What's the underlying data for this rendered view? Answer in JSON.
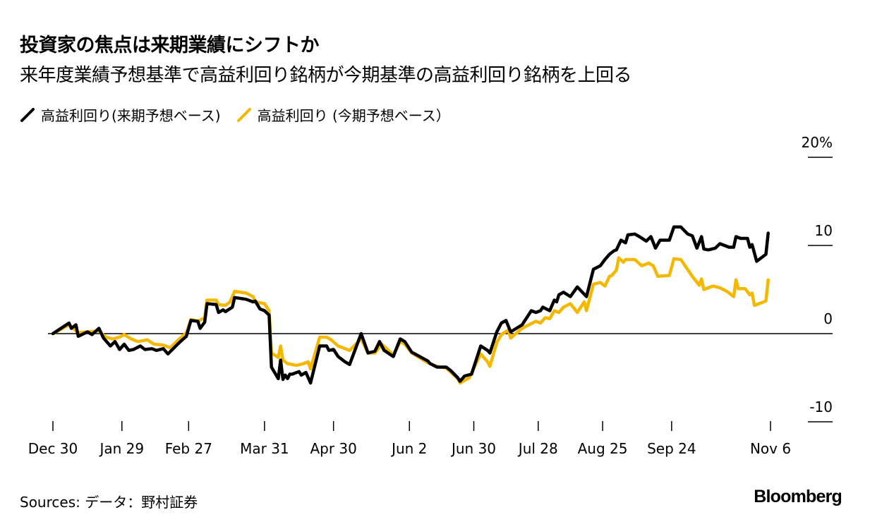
{
  "title": "投資家の焦点は来期業績にシフトか",
  "subtitle": "来年度業績予想基準で高益利回り銘柄が今期基準の高益利回り銘柄を上回る",
  "sources": "Sources: データ：野村証券",
  "logo": "Bloomberg",
  "colors": {
    "black_series": "#000000",
    "yellow_series": "#f5b800",
    "axis": "#000000"
  },
  "chart_data": {
    "type": "line",
    "title": "投資家の焦点は来期業績にシフトか",
    "xlabel": "",
    "ylabel": "",
    "x_unit": "days since Dec 30",
    "xlim": [
      0,
      312
    ],
    "ylim": [
      -10,
      20
    ],
    "y_ticks": [
      {
        "value": 20,
        "label": "20%"
      },
      {
        "value": 10,
        "label": "10"
      },
      {
        "value": 0,
        "label": "0"
      },
      {
        "value": -10,
        "label": "-10"
      }
    ],
    "x_ticks": [
      {
        "value": 0,
        "label": "Dec 30"
      },
      {
        "value": 30,
        "label": "Jan 29"
      },
      {
        "value": 59,
        "label": "Feb 27"
      },
      {
        "value": 92,
        "label": "Mar 31"
      },
      {
        "value": 122,
        "label": "Apr 30"
      },
      {
        "value": 155,
        "label": "Jun 2"
      },
      {
        "value": 183,
        "label": "Jun 30"
      },
      {
        "value": 211,
        "label": "Jul 28"
      },
      {
        "value": 239,
        "label": "Aug 25"
      },
      {
        "value": 269,
        "label": "Sep 24"
      },
      {
        "value": 312,
        "label": "Nov 6"
      }
    ],
    "legend_position": "top-left",
    "series": [
      {
        "name": "高益利回り(来期予想ベース)",
        "color": "#000000",
        "points": [
          [
            0,
            0
          ],
          [
            7,
            1.2
          ],
          [
            8,
            0.6
          ],
          [
            10,
            1.0
          ],
          [
            11,
            -0.3
          ],
          [
            15,
            0.2
          ],
          [
            17,
            -0.1
          ],
          [
            20,
            0.6
          ],
          [
            22,
            -0.5
          ],
          [
            25,
            -1.4
          ],
          [
            27,
            -0.9
          ],
          [
            29,
            -1.8
          ],
          [
            31,
            -1.2
          ],
          [
            33,
            -1.9
          ],
          [
            35,
            -1.8
          ],
          [
            38,
            -1.4
          ],
          [
            40,
            -1.8
          ],
          [
            43,
            -1.7
          ],
          [
            45,
            -1.9
          ],
          [
            48,
            -1.7
          ],
          [
            50,
            -2.3
          ],
          [
            55,
            -1.0
          ],
          [
            58,
            -0.3
          ],
          [
            60,
            1.5
          ],
          [
            63,
            1.4
          ],
          [
            64,
            0.6
          ],
          [
            66,
            1.3
          ],
          [
            67,
            3.4
          ],
          [
            71,
            3.3
          ],
          [
            72,
            2.4
          ],
          [
            74,
            2.7
          ],
          [
            75,
            2.5
          ],
          [
            78,
            3.0
          ],
          [
            79,
            4.1
          ],
          [
            84,
            3.9
          ],
          [
            87,
            3.6
          ],
          [
            88,
            3.7
          ],
          [
            90,
            2.8
          ],
          [
            92,
            2.6
          ],
          [
            94,
            2.1
          ],
          [
            95,
            -3.8
          ],
          [
            98,
            -5.1
          ],
          [
            99,
            -3.0
          ],
          [
            100,
            -5.2
          ],
          [
            101,
            -4.7
          ],
          [
            102,
            -5.1
          ],
          [
            103,
            -4.6
          ],
          [
            104,
            -4.6
          ],
          [
            107,
            -4.3
          ],
          [
            108,
            -4.7
          ],
          [
            110,
            -4.4
          ],
          [
            112,
            -5.6
          ],
          [
            116,
            -1.4
          ],
          [
            119,
            -1.4
          ],
          [
            120,
            -1.9
          ],
          [
            122,
            -1.8
          ],
          [
            124,
            -2.6
          ],
          [
            127,
            -3.2
          ],
          [
            129,
            -3.5
          ],
          [
            134,
            0
          ],
          [
            137,
            -2.2
          ],
          [
            140,
            -2.0
          ],
          [
            142,
            -0.9
          ],
          [
            144,
            -1.9
          ],
          [
            148,
            -2.6
          ],
          [
            151,
            -0.6
          ],
          [
            153,
            -0.9
          ],
          [
            156,
            -2.1
          ],
          [
            163,
            -3.1
          ],
          [
            164,
            -3.4
          ],
          [
            167,
            -3.8
          ],
          [
            171,
            -3.8
          ],
          [
            173,
            -4.2
          ],
          [
            176,
            -5.0
          ],
          [
            177,
            -5.4
          ],
          [
            179,
            -4.8
          ],
          [
            182,
            -4.6
          ],
          [
            186,
            -1.4
          ],
          [
            189,
            -1.9
          ],
          [
            190,
            -2.2
          ],
          [
            193,
            0.2
          ],
          [
            195,
            1.2
          ],
          [
            197,
            1.5
          ],
          [
            199,
            0.2
          ],
          [
            204,
            1.0
          ],
          [
            205,
            1.4
          ],
          [
            208,
            2.6
          ],
          [
            210,
            2.4
          ],
          [
            212,
            2.6
          ],
          [
            213,
            3.0
          ],
          [
            216,
            2.6
          ],
          [
            218,
            3.8
          ],
          [
            219,
            3.6
          ],
          [
            220,
            4.4
          ],
          [
            222,
            4.7
          ],
          [
            225,
            4.2
          ],
          [
            228,
            5.3
          ],
          [
            232,
            4.2
          ],
          [
            235,
            7.3
          ],
          [
            238,
            7.7
          ],
          [
            240,
            8.4
          ],
          [
            242,
            9.0
          ],
          [
            244,
            9.4
          ],
          [
            245,
            9.5
          ],
          [
            247,
            10.6
          ],
          [
            249,
            10.3
          ],
          [
            250,
            11.2
          ],
          [
            253,
            11.3
          ],
          [
            255,
            11.0
          ],
          [
            258,
            10.5
          ],
          [
            260,
            11.0
          ],
          [
            262,
            9.7
          ],
          [
            264,
            10.6
          ],
          [
            268,
            10.6
          ],
          [
            270,
            12.1
          ],
          [
            273,
            12.1
          ],
          [
            276,
            11.3
          ],
          [
            278,
            11.1
          ],
          [
            280,
            9.7
          ],
          [
            282,
            11.0
          ],
          [
            283,
            9.6
          ],
          [
            285,
            9.5
          ],
          [
            288,
            9.7
          ],
          [
            290,
            10.2
          ],
          [
            294,
            9.8
          ],
          [
            296,
            9.8
          ],
          [
            297,
            11.0
          ],
          [
            299,
            10.8
          ],
          [
            302,
            10.8
          ],
          [
            303,
            9.8
          ],
          [
            304,
            10.1
          ],
          [
            306,
            8.2
          ],
          [
            310,
            9.0
          ],
          [
            311,
            11.4
          ]
        ]
      },
      {
        "name": "高益利回り (今期予想ベース）",
        "color": "#f5b800",
        "points": [
          [
            0,
            0
          ],
          [
            7,
            1.0
          ],
          [
            11,
            0.1
          ],
          [
            15,
            0.2
          ],
          [
            20,
            0.3
          ],
          [
            23,
            -0.4
          ],
          [
            26,
            -0.6
          ],
          [
            29,
            -0.4
          ],
          [
            31,
            -0.1
          ],
          [
            34,
            -0.6
          ],
          [
            37,
            -0.9
          ],
          [
            41,
            -0.7
          ],
          [
            44,
            -1.2
          ],
          [
            48,
            -1.3
          ],
          [
            51,
            -1.6
          ],
          [
            55,
            -0.6
          ],
          [
            58,
            0.1
          ],
          [
            60,
            1.6
          ],
          [
            63,
            1.4
          ],
          [
            66,
            1.8
          ],
          [
            67,
            3.8
          ],
          [
            71,
            3.8
          ],
          [
            72,
            3.3
          ],
          [
            75,
            3.2
          ],
          [
            77,
            3.6
          ],
          [
            79,
            4.8
          ],
          [
            84,
            4.6
          ],
          [
            87,
            4.2
          ],
          [
            88,
            3.6
          ],
          [
            92,
            3.4
          ],
          [
            94,
            2.6
          ],
          [
            95,
            -2.2
          ],
          [
            98,
            -2.7
          ],
          [
            99,
            -1.4
          ],
          [
            100,
            -3.0
          ],
          [
            102,
            -3.4
          ],
          [
            106,
            -3.6
          ],
          [
            109,
            -3.4
          ],
          [
            111,
            -3.2
          ],
          [
            112,
            -4.0
          ],
          [
            116,
            -0.4
          ],
          [
            119,
            -0.4
          ],
          [
            121,
            -0.7
          ],
          [
            124,
            -1.4
          ],
          [
            129,
            -1.9
          ],
          [
            134,
            -0.6
          ],
          [
            137,
            -2.2
          ],
          [
            140,
            -2.2
          ],
          [
            143,
            -1.2
          ],
          [
            148,
            -2.4
          ],
          [
            151,
            -0.9
          ],
          [
            153,
            -1.2
          ],
          [
            156,
            -2.2
          ],
          [
            163,
            -3.3
          ],
          [
            167,
            -3.7
          ],
          [
            171,
            -3.9
          ],
          [
            176,
            -5.1
          ],
          [
            177,
            -5.6
          ],
          [
            181,
            -5.0
          ],
          [
            186,
            -2.3
          ],
          [
            189,
            -3.2
          ],
          [
            190,
            -3.7
          ],
          [
            193,
            -1.0
          ],
          [
            195,
            -0.1
          ],
          [
            198,
            0.4
          ],
          [
            199,
            -0.5
          ],
          [
            204,
            0.6
          ],
          [
            207,
            1.0
          ],
          [
            210,
            1.4
          ],
          [
            212,
            1.2
          ],
          [
            214,
            1.8
          ],
          [
            216,
            1.7
          ],
          [
            218,
            2.6
          ],
          [
            220,
            2.4
          ],
          [
            222,
            3.0
          ],
          [
            225,
            3.4
          ],
          [
            228,
            2.4
          ],
          [
            231,
            3.6
          ],
          [
            232,
            2.6
          ],
          [
            235,
            5.6
          ],
          [
            238,
            5.8
          ],
          [
            240,
            5.4
          ],
          [
            242,
            6.5
          ],
          [
            243,
            6.6
          ],
          [
            245,
            7.2
          ],
          [
            246,
            8.6
          ],
          [
            248,
            8.1
          ],
          [
            249,
            8.4
          ],
          [
            253,
            8.4
          ],
          [
            256,
            7.7
          ],
          [
            259,
            8.0
          ],
          [
            261,
            7.7
          ],
          [
            263,
            6.5
          ],
          [
            268,
            6.6
          ],
          [
            270,
            8.5
          ],
          [
            273,
            8.4
          ],
          [
            278,
            6.5
          ],
          [
            281,
            5.5
          ],
          [
            282,
            6.2
          ],
          [
            283,
            5.0
          ],
          [
            287,
            5.4
          ],
          [
            290,
            5.2
          ],
          [
            293,
            4.8
          ],
          [
            296,
            4.2
          ],
          [
            297,
            6.1
          ],
          [
            298,
            5.1
          ],
          [
            301,
            5.1
          ],
          [
            303,
            4.4
          ],
          [
            304,
            4.6
          ],
          [
            305,
            3.2
          ],
          [
            310,
            3.7
          ],
          [
            311,
            6.1
          ]
        ]
      }
    ]
  }
}
